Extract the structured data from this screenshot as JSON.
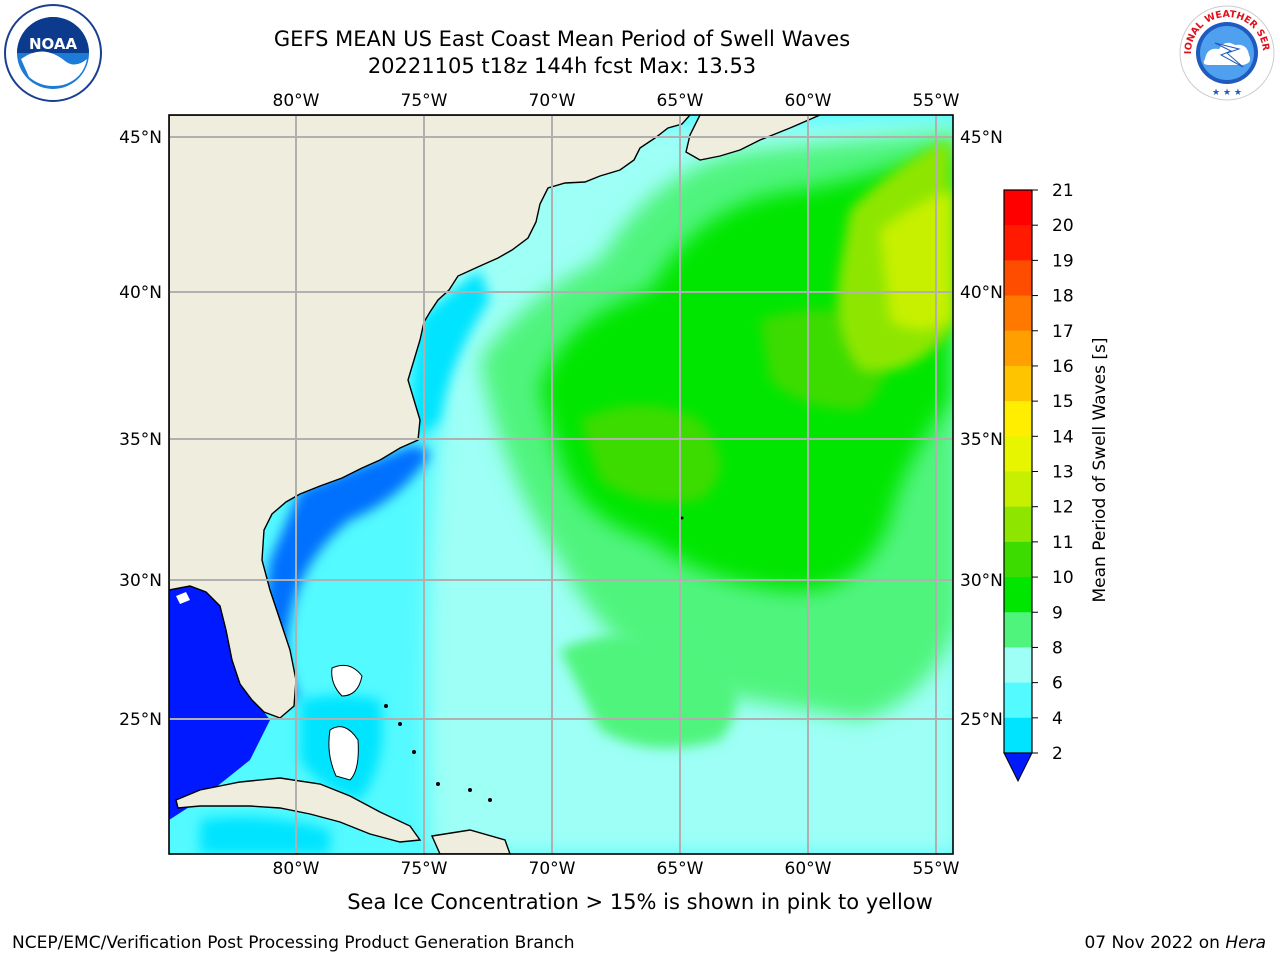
{
  "header": {
    "title_line1": "GEFS MEAN US East Coast Mean Period of Swell Waves",
    "title_line2": "20221105 t18z 144h fcst   Max: 13.53"
  },
  "logos": {
    "left": {
      "icon": "noaa-logo-icon",
      "text": "NOAA"
    },
    "right": {
      "icon": "national-weather-service-logo-icon",
      "text": "NATIONAL WEATHER SERVICE"
    }
  },
  "map": {
    "longitude_labels": [
      "80°W",
      "75°W",
      "70°W",
      "65°W",
      "60°W",
      "55°W"
    ],
    "latitude_labels": [
      "45°N",
      "40°N",
      "35°N",
      "30°N",
      "25°N"
    ],
    "land_color": "#efedde",
    "grid_color": "#b0b0b0"
  },
  "colorbar": {
    "label": "Mean Period of Swell Waves [s]",
    "tick_labels": [
      "2",
      "4",
      "6",
      "8",
      "9",
      "10",
      "11",
      "12",
      "13",
      "14",
      "15",
      "16",
      "17",
      "18",
      "19",
      "20",
      "21"
    ],
    "colors": [
      "#0019ff",
      "#006fff",
      "#00e4ff",
      "#53faff",
      "#9dfff6",
      "#4ff47d",
      "#00e600",
      "#3cdc00",
      "#8ee600",
      "#c6f000",
      "#e8f500",
      "#ffee00",
      "#ffc400",
      "#ffa000",
      "#ff7800",
      "#ff4d00",
      "#ff1a00",
      "#ff0000"
    ]
  },
  "footer": {
    "note": "Sea Ice Concentration > 15% is shown in pink to yellow",
    "credit": "NCEP/EMC/Verification Post Processing Product Generation Branch",
    "date": "07 Nov 2022 on ",
    "machine": "Hera"
  }
}
